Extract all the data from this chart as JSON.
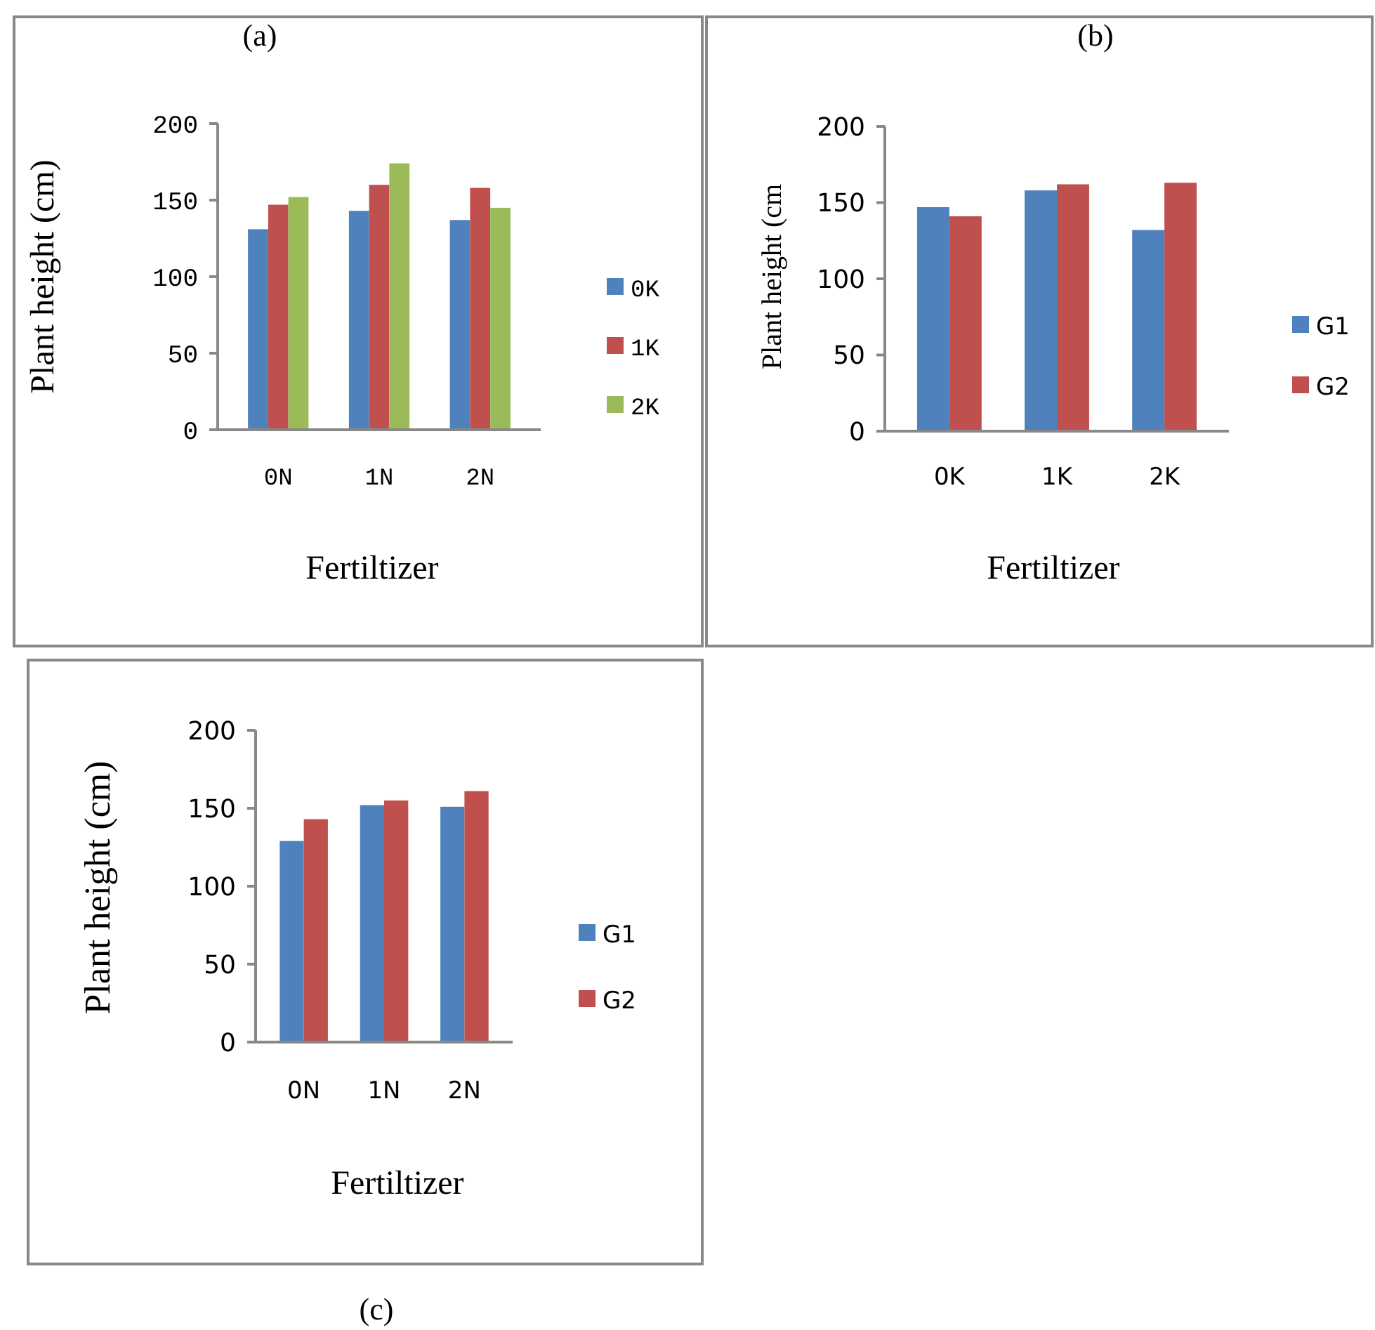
{
  "chart_data": [
    {
      "type": "bar",
      "title": "(a)",
      "xlabel": "Fertiltizer",
      "ylabel": "Plant height (cm)",
      "categories": [
        "0N",
        "1N",
        "2N"
      ],
      "series": [
        {
          "name": "0K",
          "color": "#4f81bd",
          "values": [
            131,
            143,
            137
          ]
        },
        {
          "name": "1K",
          "color": "#c0504d",
          "values": [
            147,
            160,
            158
          ]
        },
        {
          "name": "2K",
          "color": "#9bbb59",
          "values": [
            152,
            174,
            145
          ]
        }
      ],
      "ylim": [
        0,
        200
      ],
      "yticks": [
        0,
        50,
        100,
        150,
        200
      ],
      "legend": "right"
    },
    {
      "type": "bar",
      "title": "(b)",
      "xlabel": "Fertiltizer",
      "ylabel": "Plant height (cm",
      "categories": [
        "0K",
        "1K",
        "2K"
      ],
      "series": [
        {
          "name": "G1",
          "color": "#4f81bd",
          "values": [
            147,
            158,
            132
          ]
        },
        {
          "name": "G2",
          "color": "#c0504d",
          "values": [
            141,
            162,
            163
          ]
        }
      ],
      "ylim": [
        0,
        200
      ],
      "yticks": [
        0,
        50,
        100,
        150,
        200
      ],
      "legend": "right"
    },
    {
      "type": "bar",
      "title": "(c)",
      "xlabel": "Fertiltizer",
      "ylabel": "Plant height (cm)",
      "categories": [
        "0N",
        "1N",
        "2N"
      ],
      "series": [
        {
          "name": "G1",
          "color": "#4f81bd",
          "values": [
            129,
            152,
            151
          ]
        },
        {
          "name": "G2",
          "color": "#c0504d",
          "values": [
            143,
            155,
            161
          ]
        }
      ],
      "ylim": [
        0,
        200
      ],
      "yticks": [
        0,
        50,
        100,
        150,
        200
      ],
      "legend": "right"
    }
  ]
}
